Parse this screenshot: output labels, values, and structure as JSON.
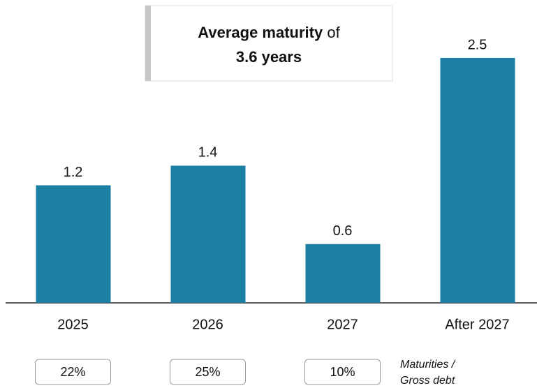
{
  "chart_data": {
    "type": "bar",
    "annotation": {
      "bold": "Average maturity",
      "text": "of",
      "highlight": "3.6 years"
    },
    "categories": [
      "2025",
      "2026",
      "2027",
      "After 2027"
    ],
    "values": [
      1.2,
      1.4,
      0.6,
      2.5
    ],
    "color": "#1a7fa3",
    "ratios": {
      "label": [
        "Maturities /",
        "Gross debt"
      ],
      "values": [
        22,
        25,
        10
      ],
      "value_labels": [
        "22%",
        "25%",
        "10%"
      ]
    }
  }
}
